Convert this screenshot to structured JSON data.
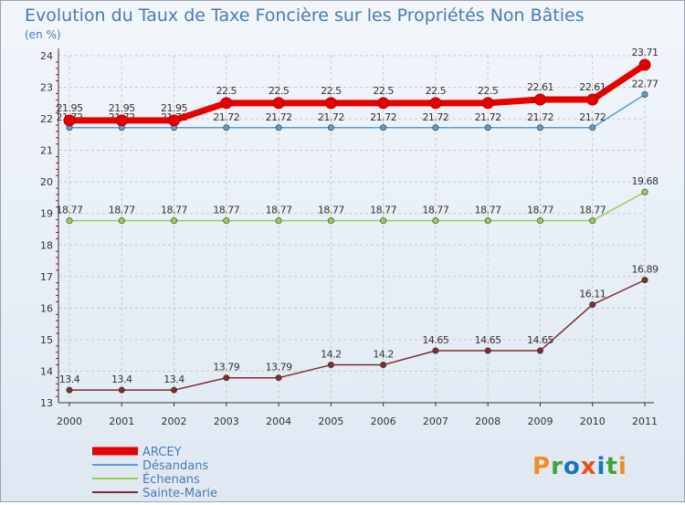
{
  "chart_data": {
    "type": "line",
    "title": "Evolution du Taux de Taxe Foncière sur les Propriétés Non Bâties",
    "ylabel": "(en %)",
    "xlabel": "",
    "categories": [
      "2000",
      "2001",
      "2002",
      "2003",
      "2004",
      "2005",
      "2006",
      "2007",
      "2008",
      "2009",
      "2010",
      "2011"
    ],
    "ylim": [
      13,
      24
    ],
    "yticks": [
      "13",
      "14",
      "15",
      "16",
      "17",
      "18",
      "19",
      "20",
      "21",
      "22",
      "23",
      "24"
    ],
    "series": [
      {
        "name": "ARCEY",
        "color": "#e60000",
        "values": [
          21.95,
          21.95,
          21.95,
          22.5,
          22.5,
          22.5,
          22.5,
          22.5,
          22.5,
          22.61,
          22.61,
          23.71
        ],
        "labels": [
          "21.95",
          "21.95",
          "21.95",
          "22.5",
          "22.5",
          "22.5",
          "22.5",
          "22.5",
          "22.5",
          "22.61",
          "22.61",
          "23.71"
        ]
      },
      {
        "name": "Désandans",
        "color": "#5b9bd5",
        "values": [
          21.72,
          21.72,
          21.72,
          21.72,
          21.72,
          21.72,
          21.72,
          21.72,
          21.72,
          21.72,
          21.72,
          22.77
        ],
        "labels": [
          "21.72",
          "21.72",
          "21.72",
          "21.72",
          "21.72",
          "21.72",
          "21.72",
          "21.72",
          "21.72",
          "21.72",
          "21.72",
          "22.77"
        ]
      },
      {
        "name": "Échenans",
        "color": "#92d050",
        "values": [
          18.77,
          18.77,
          18.77,
          18.77,
          18.77,
          18.77,
          18.77,
          18.77,
          18.77,
          18.77,
          18.77,
          19.68
        ],
        "labels": [
          "18.77",
          "18.77",
          "18.77",
          "18.77",
          "18.77",
          "18.77",
          "18.77",
          "18.77",
          "18.77",
          "18.77",
          "18.77",
          "19.68"
        ]
      },
      {
        "name": "Sainte-Marie",
        "color": "#7b2f2f",
        "values": [
          13.4,
          13.4,
          13.4,
          13.79,
          13.79,
          14.2,
          14.2,
          14.65,
          14.65,
          14.65,
          16.11,
          16.89
        ],
        "labels": [
          "13.4",
          "13.4",
          "13.4",
          "13.79",
          "13.79",
          "14.2",
          "14.2",
          "14.65",
          "14.65",
          "14.65",
          "16.11",
          "16.89"
        ]
      }
    ]
  },
  "branding": {
    "logo_text": "Proxiti"
  },
  "colors": {
    "title": "#4a7ab5",
    "axis": "#333333",
    "grid": "#c8c8c8",
    "tick_red": "#cc0000",
    "legend_text": "#4a7ab5"
  }
}
